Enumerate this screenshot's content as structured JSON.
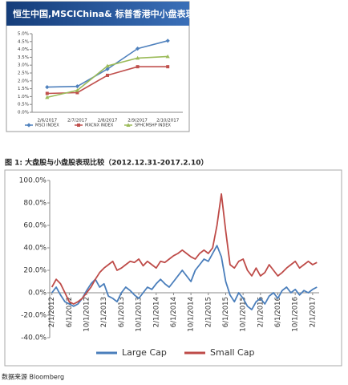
{
  "chart_data": [
    {
      "type": "line",
      "title": "恒生中国,MSCIChina& 标普香港中小盘表现",
      "categories": [
        "2/6/2017",
        "2/7/2017",
        "2/8/2017",
        "2/9/2017",
        "2/10/2017"
      ],
      "ylim": [
        0,
        5
      ],
      "yticks": [
        {
          "value": 0,
          "label": "0.0%"
        },
        {
          "value": 0.5,
          "label": "0.5%"
        },
        {
          "value": 1,
          "label": "1.0%"
        },
        {
          "value": 1.5,
          "label": "1.5%"
        },
        {
          "value": 2,
          "label": "2.0%"
        },
        {
          "value": 2.5,
          "label": "2.5%"
        },
        {
          "value": 3,
          "label": "3.0%"
        },
        {
          "value": 3.5,
          "label": "3.5%"
        },
        {
          "value": 4,
          "label": "4.0%"
        },
        {
          "value": 4.5,
          "label": "4.5%"
        },
        {
          "value": 5,
          "label": "5.0%"
        }
      ],
      "series": [
        {
          "name": "MSCI INDEX",
          "color": "#4f81bd",
          "marker": "diamond",
          "values": [
            1.6,
            1.65,
            2.75,
            4.05,
            4.55
          ]
        },
        {
          "name": "MXCNX INDEX",
          "color": "#c0504d",
          "marker": "square",
          "values": [
            1.2,
            1.25,
            2.35,
            2.9,
            2.9
          ]
        },
        {
          "name": "SPHCMSHP INDEX",
          "color": "#9bbb59",
          "marker": "triangle",
          "values": [
            0.95,
            1.4,
            2.95,
            3.45,
            3.55
          ]
        }
      ]
    },
    {
      "type": "line",
      "x": [
        0,
        1,
        2,
        3,
        4,
        5,
        6,
        7,
        8,
        9,
        10,
        11,
        12,
        13,
        14,
        15,
        16,
        17,
        18,
        19,
        20,
        21,
        22,
        23,
        24,
        25,
        26,
        27,
        28,
        29,
        30,
        31,
        32,
        33,
        34,
        35,
        36,
        37,
        38,
        39,
        40,
        41,
        42,
        43,
        44,
        45,
        46,
        47,
        48,
        49,
        50,
        51,
        52,
        53,
        54,
        55,
        56,
        57,
        58,
        59,
        60,
        61
      ],
      "xlim": [
        -0.5,
        61.5
      ],
      "xticks": [
        {
          "value": 0,
          "label": "2/1/2012"
        },
        {
          "value": 4,
          "label": "6/1/2012"
        },
        {
          "value": 8,
          "label": "10/1/2012"
        },
        {
          "value": 12,
          "label": "2/1/2013"
        },
        {
          "value": 16,
          "label": "6/1/2013"
        },
        {
          "value": 20,
          "label": "10/1/2013"
        },
        {
          "value": 24,
          "label": "2/1/2014"
        },
        {
          "value": 28,
          "label": "6/1/2014"
        },
        {
          "value": 32,
          "label": "10/1/2014"
        },
        {
          "value": 36,
          "label": "2/1/2015"
        },
        {
          "value": 40,
          "label": "6/1/2015"
        },
        {
          "value": 44,
          "label": "10/1/2015"
        },
        {
          "value": 48,
          "label": "2/1/2016"
        },
        {
          "value": 52,
          "label": "6/1/2016"
        },
        {
          "value": 56,
          "label": "10/1/2016"
        },
        {
          "value": 60,
          "label": "2/1/2017"
        }
      ],
      "ylim": [
        -40,
        100
      ],
      "yticks": [
        {
          "value": -40,
          "label": "-40.0%"
        },
        {
          "value": -20,
          "label": "-20.0%"
        },
        {
          "value": 0,
          "label": "0.0%"
        },
        {
          "value": 20,
          "label": "20.0%"
        },
        {
          "value": 40,
          "label": "40.0%"
        },
        {
          "value": 60,
          "label": "60.0%"
        },
        {
          "value": 80,
          "label": "80.0%"
        },
        {
          "value": 100,
          "label": "100.0%"
        }
      ],
      "series": [
        {
          "name": "Large Cap",
          "color": "#4a7ebb",
          "values": [
            0,
            5,
            -2,
            -8,
            -10,
            -12,
            -10,
            -5,
            2,
            8,
            12,
            5,
            8,
            -3,
            -5,
            -8,
            0,
            5,
            2,
            -2,
            -5,
            0,
            5,
            3,
            8,
            12,
            8,
            5,
            10,
            15,
            20,
            15,
            10,
            20,
            25,
            30,
            28,
            35,
            42,
            32,
            10,
            -2,
            -8,
            0,
            -5,
            -12,
            -15,
            -8,
            -5,
            -10,
            -3,
            0,
            -5,
            2,
            5,
            0,
            3,
            -2,
            2,
            0,
            3,
            5
          ]
        },
        {
          "name": "Small Cap",
          "color": "#be4b48",
          "values": [
            5,
            12,
            8,
            0,
            -8,
            -10,
            -8,
            -5,
            0,
            5,
            12,
            18,
            22,
            25,
            28,
            20,
            22,
            25,
            28,
            27,
            30,
            24,
            28,
            25,
            22,
            28,
            27,
            30,
            33,
            35,
            38,
            35,
            32,
            30,
            35,
            38,
            35,
            40,
            60,
            88,
            55,
            25,
            22,
            28,
            30,
            20,
            15,
            22,
            15,
            18,
            25,
            20,
            15,
            18,
            22,
            25,
            28,
            22,
            25,
            28,
            25,
            27
          ]
        }
      ]
    }
  ],
  "figure_caption": "图 1: 大盘股与小盘股表现比较（2012.12.31-2017.2.10）",
  "source": "数据来源 Bloomberg"
}
